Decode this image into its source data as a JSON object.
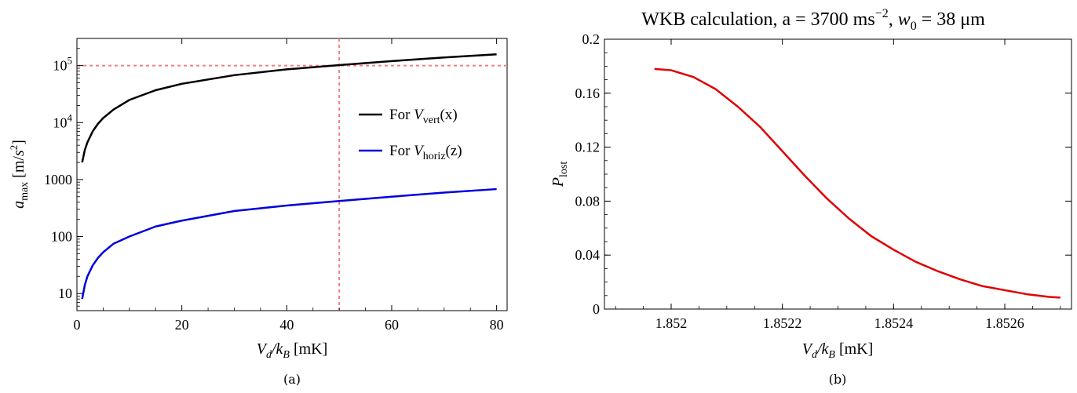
{
  "chart_data": [
    {
      "panel": "(a)",
      "type": "line",
      "xlabel": "V_d/k_B [mK]",
      "ylabel": "a_max [m/s^2]",
      "xlim": [
        0,
        82
      ],
      "ylim": [
        5,
        300000
      ],
      "yscale": "log",
      "xticks": [
        0,
        20,
        40,
        60,
        80
      ],
      "yticks": [
        {
          "value": 10,
          "label": "10"
        },
        {
          "value": 100,
          "label": "100"
        },
        {
          "value": 1000,
          "label": "1000"
        },
        {
          "value": 10000,
          "label": "10",
          "exp": "4"
        },
        {
          "value": 100000,
          "label": "10",
          "exp": "5"
        }
      ],
      "grid": false,
      "legend_position": "center-right",
      "reference_lines": [
        {
          "orientation": "horizontal",
          "value": 100000,
          "color": "#f08080",
          "style": "dashed"
        },
        {
          "orientation": "vertical",
          "value": 50,
          "color": "#f08080",
          "style": "dashed"
        }
      ],
      "series": [
        {
          "name": "For V_vert(x)",
          "legend_prefix": "For ",
          "legend_symbol": "V",
          "legend_sub": "vert",
          "legend_suffix": "(x)",
          "color": "#000000",
          "x": [
            1,
            1.5,
            2,
            3,
            4,
            5,
            7,
            10,
            15,
            20,
            30,
            40,
            50,
            60,
            70,
            80
          ],
          "values": [
            2000,
            3300,
            4500,
            7000,
            9500,
            12000,
            17000,
            25000,
            37000,
            48000,
            68000,
            86000,
            102000,
            120000,
            139000,
            158000
          ]
        },
        {
          "name": "For V_horiz(z)",
          "legend_prefix": "For ",
          "legend_symbol": "V",
          "legend_sub": "horiz",
          "legend_suffix": "(z)",
          "color": "#0000dd",
          "x": [
            1,
            1.5,
            2,
            3,
            4,
            5,
            7,
            10,
            15,
            20,
            30,
            40,
            50,
            60,
            70,
            80
          ],
          "values": [
            8,
            14,
            20,
            31,
            42,
            53,
            75,
            100,
            150,
            190,
            280,
            350,
            420,
            500,
            590,
            680
          ]
        }
      ],
      "caption": "(a)"
    },
    {
      "panel": "(b)",
      "type": "line",
      "title": "WKB calculation, a = 3700 ms^-2, w_0 = 38 μm",
      "title_parts": {
        "pre": "WKB calculation, a = 3700 ms",
        "sup": "−2",
        "mid": ", ",
        "w": "w",
        "wsub": "0",
        "post": " = 38 μm"
      },
      "xlabel": "V_d/k_B [mK]",
      "ylabel": "P_lost",
      "xlim": [
        1.85188,
        1.85272
      ],
      "ylim": [
        0,
        0.2
      ],
      "xticks": [
        {
          "value": 1.852,
          "label": "1.852"
        },
        {
          "value": 1.8522,
          "label": "1.8522"
        },
        {
          "value": 1.8524,
          "label": "1.8524"
        },
        {
          "value": 1.8526,
          "label": "1.8526"
        }
      ],
      "yticks": [
        {
          "value": 0,
          "label": "0"
        },
        {
          "value": 0.04,
          "label": "0.04"
        },
        {
          "value": 0.08,
          "label": "0.08"
        },
        {
          "value": 0.12,
          "label": "0.12"
        },
        {
          "value": 0.16,
          "label": "0.16"
        },
        {
          "value": 0.2,
          "label": "0.2"
        }
      ],
      "grid": false,
      "series": [
        {
          "color": "#e00000",
          "x": [
            1.85197,
            1.852,
            1.85204,
            1.85208,
            1.85212,
            1.85216,
            1.8522,
            1.85224,
            1.85228,
            1.85232,
            1.85236,
            1.8524,
            1.85244,
            1.85248,
            1.85252,
            1.85256,
            1.8526,
            1.85264,
            1.85268,
            1.8527
          ],
          "values": [
            0.178,
            0.177,
            0.172,
            0.163,
            0.15,
            0.135,
            0.117,
            0.099,
            0.082,
            0.067,
            0.054,
            0.044,
            0.035,
            0.028,
            0.022,
            0.017,
            0.014,
            0.011,
            0.009,
            0.0085
          ]
        }
      ],
      "caption": "(b)"
    }
  ]
}
